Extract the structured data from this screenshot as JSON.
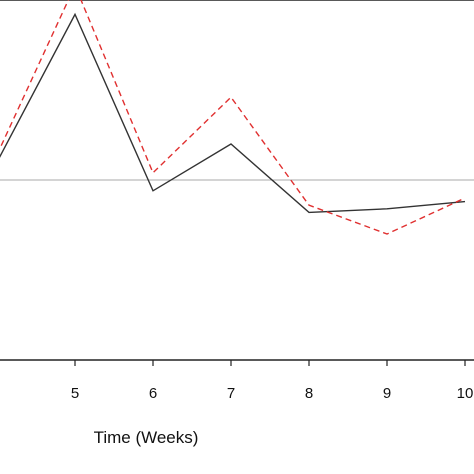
{
  "chart_data": {
    "type": "line",
    "title": "",
    "xlabel": "Time (Weeks)",
    "ylabel": "",
    "x": [
      4,
      5,
      6,
      7,
      8,
      9,
      10
    ],
    "x_tick_labels": [
      "5",
      "6",
      "7",
      "8",
      "9",
      "10"
    ],
    "reference_line": {
      "y": 0.5,
      "color": "#aaaaaa"
    },
    "ylim": [
      0,
      1
    ],
    "series": [
      {
        "style": "solid",
        "color": "#333333",
        "values": [
          0.55,
          0.96,
          0.47,
          0.6,
          0.41,
          0.42,
          0.44
        ]
      },
      {
        "style": "dashed",
        "color": "#e03030",
        "values": [
          0.57,
          1.04,
          0.52,
          0.73,
          0.43,
          0.35,
          0.45
        ]
      }
    ],
    "grid": false
  }
}
